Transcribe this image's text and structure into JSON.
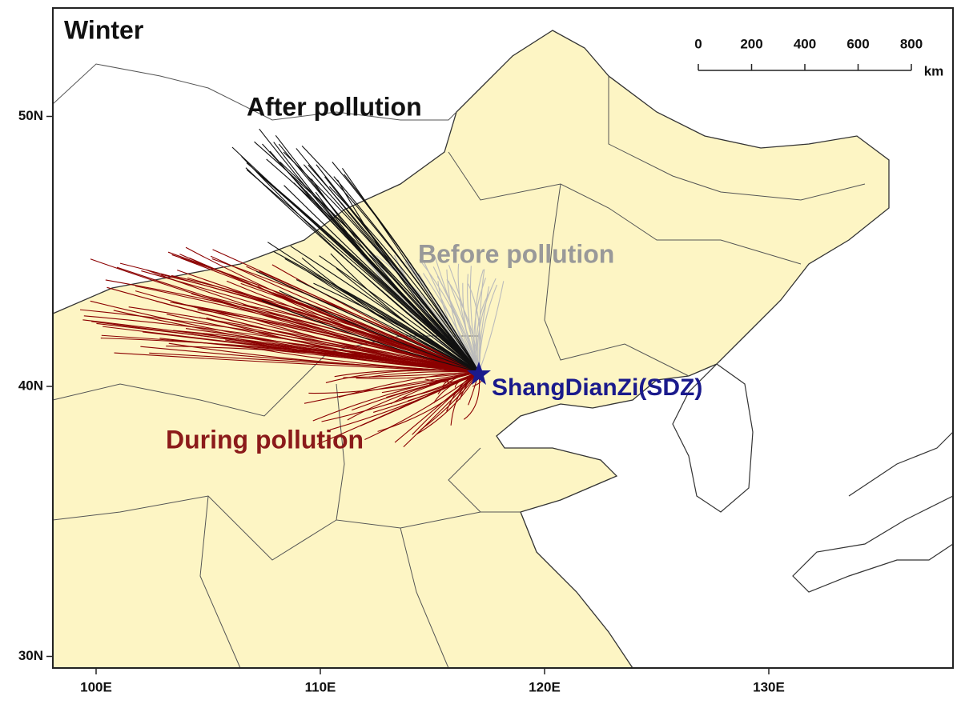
{
  "map": {
    "season": "Winter",
    "labels": {
      "after": "After pollution",
      "before": "Before pollution",
      "during": "During pollution",
      "site": "ShangDianZi(SDZ)"
    },
    "lat_ticks": [
      {
        "value": 50,
        "label": "50N"
      },
      {
        "value": 40,
        "label": "40N"
      },
      {
        "value": 30,
        "label": "30N"
      }
    ],
    "lon_ticks": [
      {
        "value": 100,
        "label": "100E"
      },
      {
        "value": 110,
        "label": "110E"
      },
      {
        "value": 120,
        "label": "120E"
      },
      {
        "value": 130,
        "label": "130E"
      }
    ],
    "scale_ticks": [
      0,
      200,
      400,
      600,
      800
    ],
    "scale_unit": "km"
  }
}
